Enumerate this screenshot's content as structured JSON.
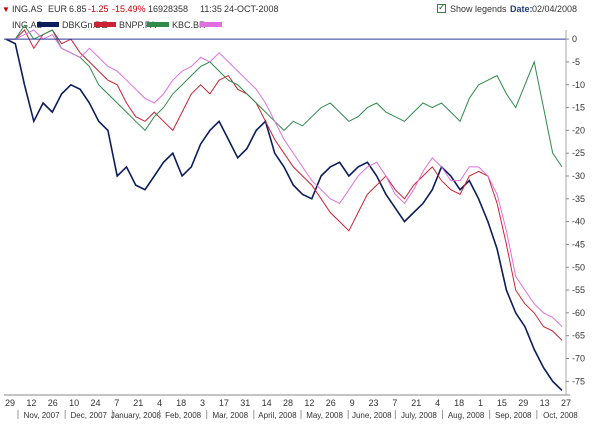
{
  "header": {
    "symbol": "ING.AS",
    "currency": "EUR",
    "price": "6.85",
    "change": "-1.25",
    "change_pct": "-15.49%",
    "volume": "16928358",
    "time": "11:35",
    "date": "24-OCT-2008",
    "show_legends_label": "Show legends",
    "show_legends_checked": true,
    "start_date_label": "Date:",
    "start_date_value": "02/04/2008"
  },
  "legend": [
    {
      "name": "ING.AS",
      "color": "#7b7bd0"
    },
    {
      "name": "DBKGn.DE",
      "color": "#0b1e5b"
    },
    {
      "name": "BNPP.PA",
      "color": "#cc2233"
    },
    {
      "name": "KBC.BR",
      "color": "#2e8b4a"
    },
    {
      "name": "",
      "color": "#e070e0"
    }
  ],
  "chart_data": {
    "type": "line",
    "y_axis": {
      "side": "right",
      "ylim": [
        -78,
        2
      ],
      "ticks": [
        0,
        -5,
        -10,
        -15,
        -20,
        -25,
        -30,
        -35,
        -40,
        -45,
        -50,
        -55,
        -60,
        -65,
        -70,
        -75
      ]
    },
    "grid": false,
    "zero_line": true,
    "x_tick_labels": [
      "29",
      "12",
      "26",
      "10",
      "24",
      "7",
      "21",
      "4",
      "18",
      "3",
      "17",
      "31",
      "14",
      "28",
      "12",
      "26",
      "9",
      "23",
      "7",
      "21",
      "4",
      "18",
      "1",
      "15",
      "29",
      "13",
      "27"
    ],
    "x_month_labels": [
      "Nov, 2007",
      "Dec, 2007",
      "January, 2008",
      "Feb, 2008",
      "Mar, 2008",
      "April, 2008",
      "May, 2008",
      "June, 2008",
      "July, 2008",
      "Aug, 2008",
      "Sep, 2008",
      "Oct, 2008"
    ],
    "series": [
      {
        "name": "DBKGn.DE",
        "color": "#0b1e5b",
        "width": 1.6,
        "values": [
          0,
          -1,
          -10,
          -18,
          -14,
          -16,
          -12,
          -10,
          -11,
          -14,
          -18,
          -20,
          -30,
          -28,
          -32,
          -33,
          -30,
          -27,
          -25,
          -30,
          -28,
          -23,
          -20,
          -18,
          -22,
          -26,
          -24,
          -20,
          -18,
          -25,
          -28,
          -32,
          -34,
          -35,
          -30,
          -28,
          -27,
          -30,
          -28,
          -27,
          -30,
          -34,
          -37,
          -40,
          -38,
          -36,
          -33,
          -28,
          -30,
          -33,
          -31,
          -35,
          -40,
          -46,
          -55,
          -60,
          -63,
          -68,
          -72,
          -75,
          -77
        ]
      },
      {
        "name": "BNPP.PA",
        "color": "#cc2233",
        "width": 1,
        "values": [
          0,
          0,
          2,
          -2,
          1,
          2,
          -1,
          0,
          -3,
          -5,
          -7,
          -9,
          -10,
          -14,
          -17,
          -18,
          -16,
          -18,
          -20,
          -16,
          -12,
          -10,
          -12,
          -9,
          -8,
          -11,
          -12,
          -14,
          -18,
          -22,
          -25,
          -28,
          -30,
          -32,
          -35,
          -38,
          -40,
          -42,
          -38,
          -34,
          -32,
          -30,
          -33,
          -35,
          -32,
          -30,
          -28,
          -31,
          -33,
          -34,
          -30,
          -29,
          -30,
          -36,
          -45,
          -55,
          -58,
          -60,
          -63,
          -64,
          -66
        ]
      },
      {
        "name": "KBC.BR",
        "color": "#2e8b4a",
        "width": 1,
        "values": [
          0,
          0,
          3,
          0,
          1,
          2,
          -2,
          -3,
          -4,
          -6,
          -10,
          -12,
          -14,
          -16,
          -18,
          -20,
          -17,
          -15,
          -12,
          -10,
          -8,
          -6,
          -5,
          -7,
          -9,
          -10,
          -12,
          -14,
          -16,
          -18,
          -20,
          -18,
          -19,
          -17,
          -15,
          -14,
          -16,
          -18,
          -17,
          -15,
          -14,
          -16,
          -17,
          -18,
          -16,
          -14,
          -15,
          -14,
          -16,
          -18,
          -13,
          -10,
          -9,
          -8,
          -12,
          -15,
          -10,
          -5,
          -15,
          -25,
          -28
        ]
      },
      {
        "name": "",
        "color": "#e070e0",
        "width": 1,
        "values": [
          0,
          0,
          1,
          2,
          0,
          1,
          -2,
          -3,
          -4,
          -2,
          -4,
          -6,
          -7,
          -9,
          -11,
          -13,
          -14,
          -12,
          -9,
          -7,
          -6,
          -4,
          -5,
          -3,
          -5,
          -7,
          -9,
          -11,
          -14,
          -18,
          -22,
          -25,
          -28,
          -31,
          -33,
          -35,
          -36,
          -33,
          -30,
          -28,
          -27,
          -30,
          -34,
          -36,
          -33,
          -29,
          -26,
          -28,
          -31,
          -31,
          -28,
          -28,
          -30,
          -34,
          -42,
          -52,
          -55,
          -58,
          -60,
          -61,
          -63
        ]
      }
    ]
  }
}
